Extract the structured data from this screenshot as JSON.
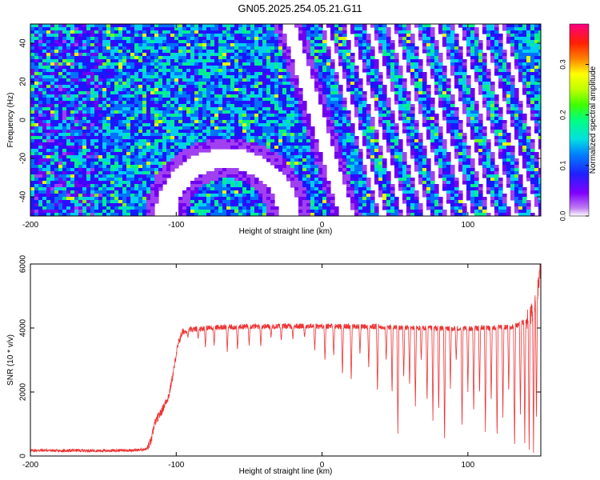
{
  "title": "GN05.2025.254.05.21.G11",
  "chart_data": [
    {
      "type": "heatmap",
      "xlabel": "Height of straight line (km)",
      "ylabel": "Frequency (Hz)",
      "xlim": [
        -200,
        150
      ],
      "ylim": [
        -50,
        50
      ],
      "xticks": [
        -200,
        -100,
        0,
        100
      ],
      "yticks": [
        -40,
        -20,
        0,
        20,
        40
      ],
      "grid": false,
      "colorbar": {
        "label": "Normalized spectral amplitude",
        "range": [
          0.0,
          0.38
        ],
        "ticks": [
          0.0,
          0.1,
          0.2,
          0.3
        ],
        "colormap": [
          "#ffffff",
          "#a020f0",
          "#0000ff",
          "#00c0ff",
          "#00ff80",
          "#80ff00",
          "#ffff00",
          "#ff8000",
          "#ff0000",
          "#ff00a0"
        ]
      },
      "features": {
        "line_slope_hz_per_km": -2.5,
        "stripe_gaps_hz_km": [
          {
            "x_at_f0": -3,
            "width_km": 10
          },
          {
            "x_at_f0": 22,
            "width_km": 4
          },
          {
            "x_at_f0": 37,
            "width_km": 4
          },
          {
            "x_at_f0": 52,
            "width_km": 4
          },
          {
            "x_at_f0": 67,
            "width_km": 4
          },
          {
            "x_at_f0": 82,
            "width_km": 4
          },
          {
            "x_at_f0": 97,
            "width_km": 4
          },
          {
            "x_at_f0": 112,
            "width_km": 4
          },
          {
            "x_at_f0": 127,
            "width_km": 4
          },
          {
            "x_at_f0": 142,
            "width_km": 4
          }
        ],
        "arc_gap": {
          "center_x": -65,
          "center_f": -50,
          "radius_km": 42,
          "radius_hz": 30,
          "width": 0.35
        }
      }
    },
    {
      "type": "line",
      "xlabel": "Height of straight line (km)",
      "ylabel": "SNR (10 * v/v)",
      "xlim": [
        -200,
        150
      ],
      "ylim": [
        0,
        6000
      ],
      "xticks": [
        -200,
        -100,
        0,
        100
      ],
      "yticks": [
        0,
        2000,
        4000,
        6000
      ],
      "grid": false,
      "series": [
        {
          "color": "#ee3333",
          "x": [
            -200,
            -190,
            -180,
            -170,
            -160,
            -150,
            -140,
            -130,
            -125,
            -120,
            -117,
            -115,
            -112,
            -110,
            -108,
            -105,
            -102,
            -100,
            -98,
            -96,
            -94,
            -90,
            -80,
            -70,
            -60,
            -50,
            -40,
            -30,
            -20,
            -10,
            0,
            10,
            20,
            30,
            40,
            50,
            60,
            70,
            80,
            90,
            100,
            110,
            120,
            130,
            140,
            145,
            148,
            150
          ],
          "y": [
            170,
            180,
            160,
            175,
            170,
            165,
            175,
            180,
            190,
            230,
            500,
            1000,
            1250,
            1400,
            1600,
            1900,
            2600,
            3200,
            3600,
            3850,
            3900,
            3950,
            4000,
            4020,
            4030,
            4050,
            4050,
            4060,
            4060,
            4060,
            4060,
            4050,
            4050,
            4040,
            4040,
            4020,
            4000,
            4000,
            3990,
            3980,
            3980,
            4000,
            4010,
            4030,
            4200,
            4600,
            5200,
            6000
          ]
        }
      ],
      "dips": [
        {
          "x": -92,
          "depth": 3700
        },
        {
          "x": -85,
          "depth": 3650
        },
        {
          "x": -80,
          "depth": 3400
        },
        {
          "x": -74,
          "depth": 3450
        },
        {
          "x": -65,
          "depth": 3250
        },
        {
          "x": -58,
          "depth": 3300
        },
        {
          "x": -50,
          "depth": 3450
        },
        {
          "x": -42,
          "depth": 3400
        },
        {
          "x": -35,
          "depth": 3700
        },
        {
          "x": -28,
          "depth": 3600
        },
        {
          "x": -20,
          "depth": 3650
        },
        {
          "x": -12,
          "depth": 3700
        },
        {
          "x": -5,
          "depth": 3300
        },
        {
          "x": 2,
          "depth": 2950
        },
        {
          "x": 8,
          "depth": 3100
        },
        {
          "x": 14,
          "depth": 2500
        },
        {
          "x": 20,
          "depth": 2300
        },
        {
          "x": 26,
          "depth": 3150
        },
        {
          "x": 32,
          "depth": 2700
        },
        {
          "x": 38,
          "depth": 1950
        },
        {
          "x": 44,
          "depth": 2950
        },
        {
          "x": 48,
          "depth": 1900
        },
        {
          "x": 52,
          "depth": 700
        },
        {
          "x": 56,
          "depth": 2400
        },
        {
          "x": 60,
          "depth": 2150
        },
        {
          "x": 64,
          "depth": 1550
        },
        {
          "x": 68,
          "depth": 2950
        },
        {
          "x": 72,
          "depth": 1650
        },
        {
          "x": 76,
          "depth": 1100
        },
        {
          "x": 80,
          "depth": 1350
        },
        {
          "x": 84,
          "depth": 350
        },
        {
          "x": 88,
          "depth": 2100
        },
        {
          "x": 92,
          "depth": 2950
        },
        {
          "x": 96,
          "depth": 800
        },
        {
          "x": 100,
          "depth": 2000
        },
        {
          "x": 104,
          "depth": 1300
        },
        {
          "x": 108,
          "depth": 1900
        },
        {
          "x": 112,
          "depth": 750
        },
        {
          "x": 116,
          "depth": 1650
        },
        {
          "x": 120,
          "depth": 500
        },
        {
          "x": 124,
          "depth": 1200
        },
        {
          "x": 128,
          "depth": 1950
        },
        {
          "x": 132,
          "depth": 150
        },
        {
          "x": 136,
          "depth": 1300
        },
        {
          "x": 139,
          "depth": 400
        },
        {
          "x": 142,
          "depth": 200
        },
        {
          "x": 145,
          "depth": 100
        },
        {
          "x": 147,
          "depth": 1000
        }
      ]
    }
  ]
}
